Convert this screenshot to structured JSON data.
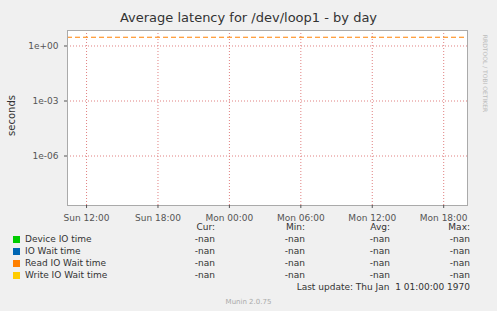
{
  "chart_data": {
    "type": "line",
    "title": "Average latency for /dev/loop1 - by day",
    "y_label": "seconds",
    "log": "y",
    "grid": true,
    "xlim": [
      10.4,
      44
    ],
    "xticks": [
      {
        "value": 12,
        "label": "Sun 12:00"
      },
      {
        "value": 18,
        "label": "Sun 18:00"
      },
      {
        "value": 24,
        "label": "Mon 00:00"
      },
      {
        "value": 30,
        "label": "Mon 06:00"
      },
      {
        "value": 36,
        "label": "Mon 12:00"
      },
      {
        "value": 42,
        "label": "Mon 18:00"
      }
    ],
    "ylim": [
      2e-09,
      7
    ],
    "yticks": [
      {
        "value": 1e-06,
        "label": "1e-06"
      },
      {
        "value": 0.001,
        "label": "1e-03"
      },
      {
        "value": 1,
        "label": "1e+00"
      }
    ],
    "x": [],
    "series": [
      {
        "name": "Device IO time",
        "color": "#00cc00",
        "values": [],
        "legend_values": [
          "-nan",
          "-nan",
          "-nan",
          "-nan"
        ]
      },
      {
        "name": "IO Wait time",
        "color": "#0066b3",
        "values": [],
        "legend_values": [
          "-nan",
          "-nan",
          "-nan",
          "-nan"
        ]
      },
      {
        "name": "Read IO Wait time",
        "color": "#ff8000",
        "values": [],
        "legend_values": [
          "-nan",
          "-nan",
          "-nan",
          "-nan"
        ]
      },
      {
        "name": "Write IO Wait time",
        "color": "#ffcc00",
        "values": [],
        "legend_values": [
          "-nan",
          "-nan",
          "-nan",
          "-nan"
        ]
      }
    ],
    "legend_columns": [
      "Cur:",
      "Min:",
      "Avg:",
      "Max:"
    ],
    "reference_line": {
      "value": 3,
      "color": "#ff8000",
      "line_style": "dashed"
    },
    "footer": "Last update: Thu Jan  1 01:00:00 1970",
    "credit": "Munin 2.0.75",
    "side_text": "RRDTOOL / TOBI OETIKER"
  }
}
